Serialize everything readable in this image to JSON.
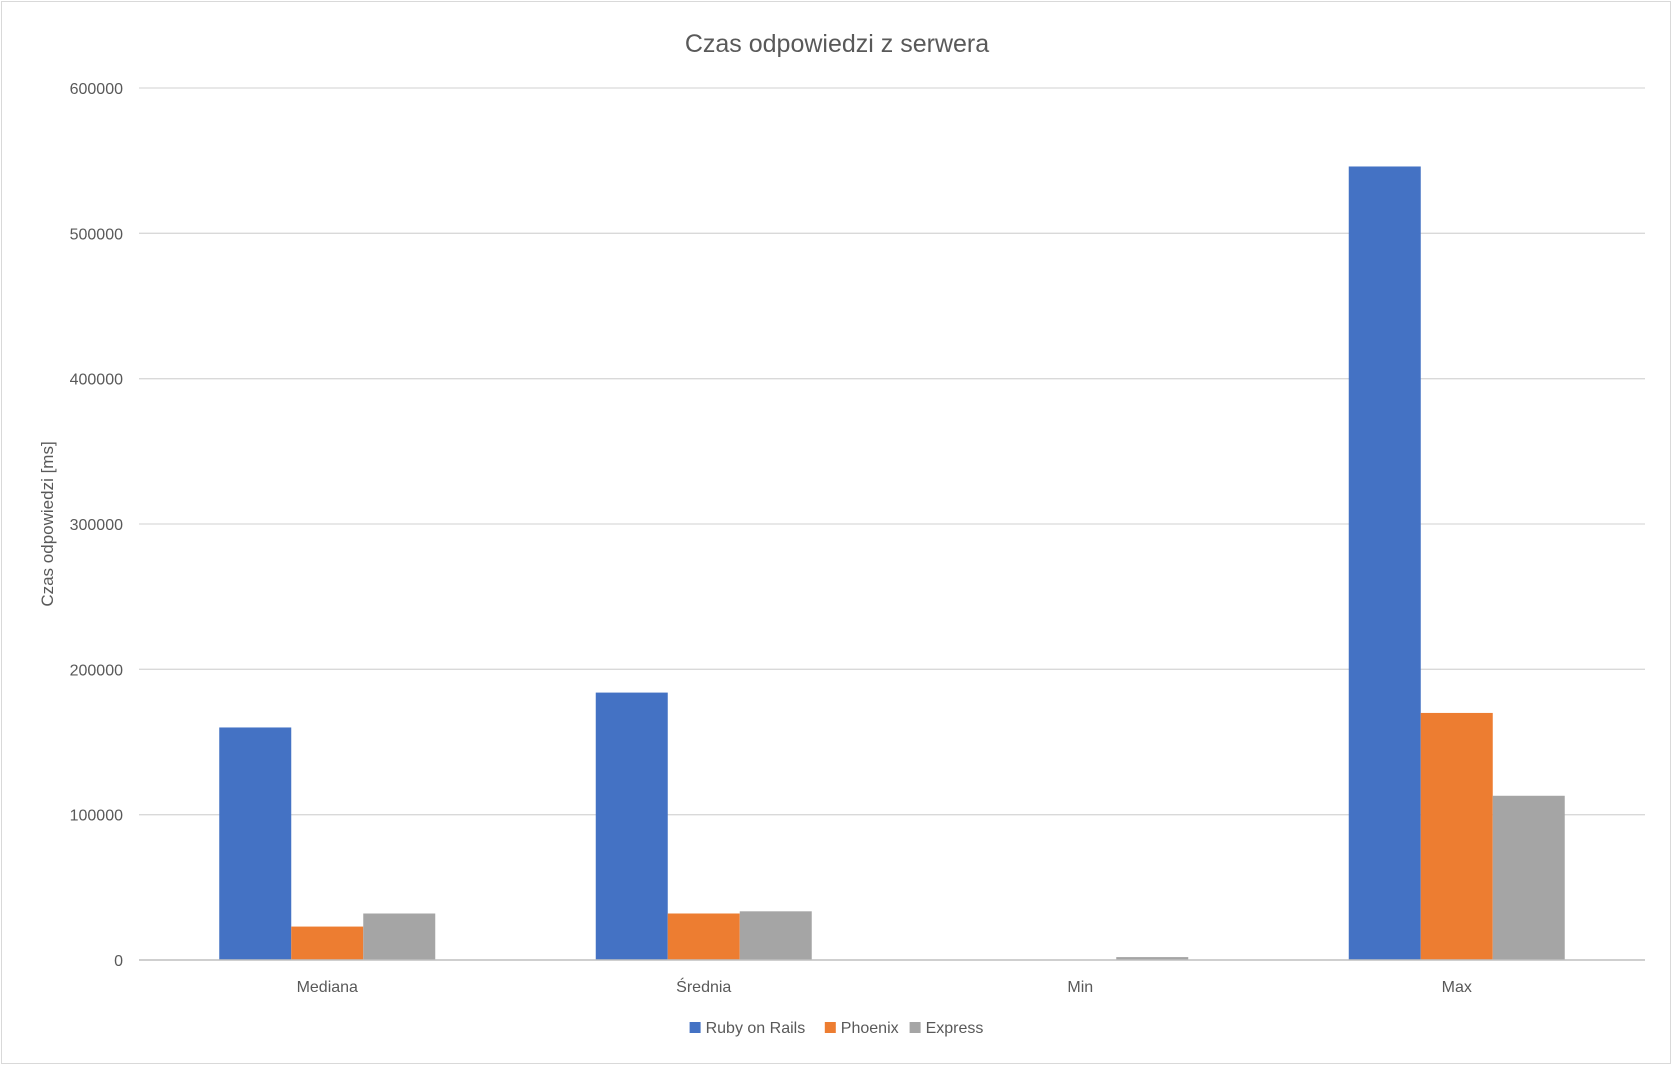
{
  "chart_data": {
    "type": "bar",
    "title": "Czas odpowiedzi z serwera",
    "xlabel": "",
    "ylabel": "Czas odpowiedzi [ms]",
    "categories": [
      "Mediana",
      "Średnia",
      "Min",
      "Max"
    ],
    "series": [
      {
        "name": "Ruby on Rails",
        "color": "#4472C4",
        "values": [
          160000,
          184000,
          100,
          546000
        ]
      },
      {
        "name": "Phoenix",
        "color": "#ED7D31",
        "values": [
          23000,
          32000,
          100,
          170000
        ]
      },
      {
        "name": "Express",
        "color": "#A5A5A5",
        "values": [
          32000,
          33500,
          2000,
          113000
        ]
      }
    ],
    "ylim": [
      0,
      600000
    ],
    "yticks": [
      0,
      100000,
      200000,
      300000,
      400000,
      500000,
      600000
    ],
    "grid": true,
    "legend_position": "bottom"
  }
}
